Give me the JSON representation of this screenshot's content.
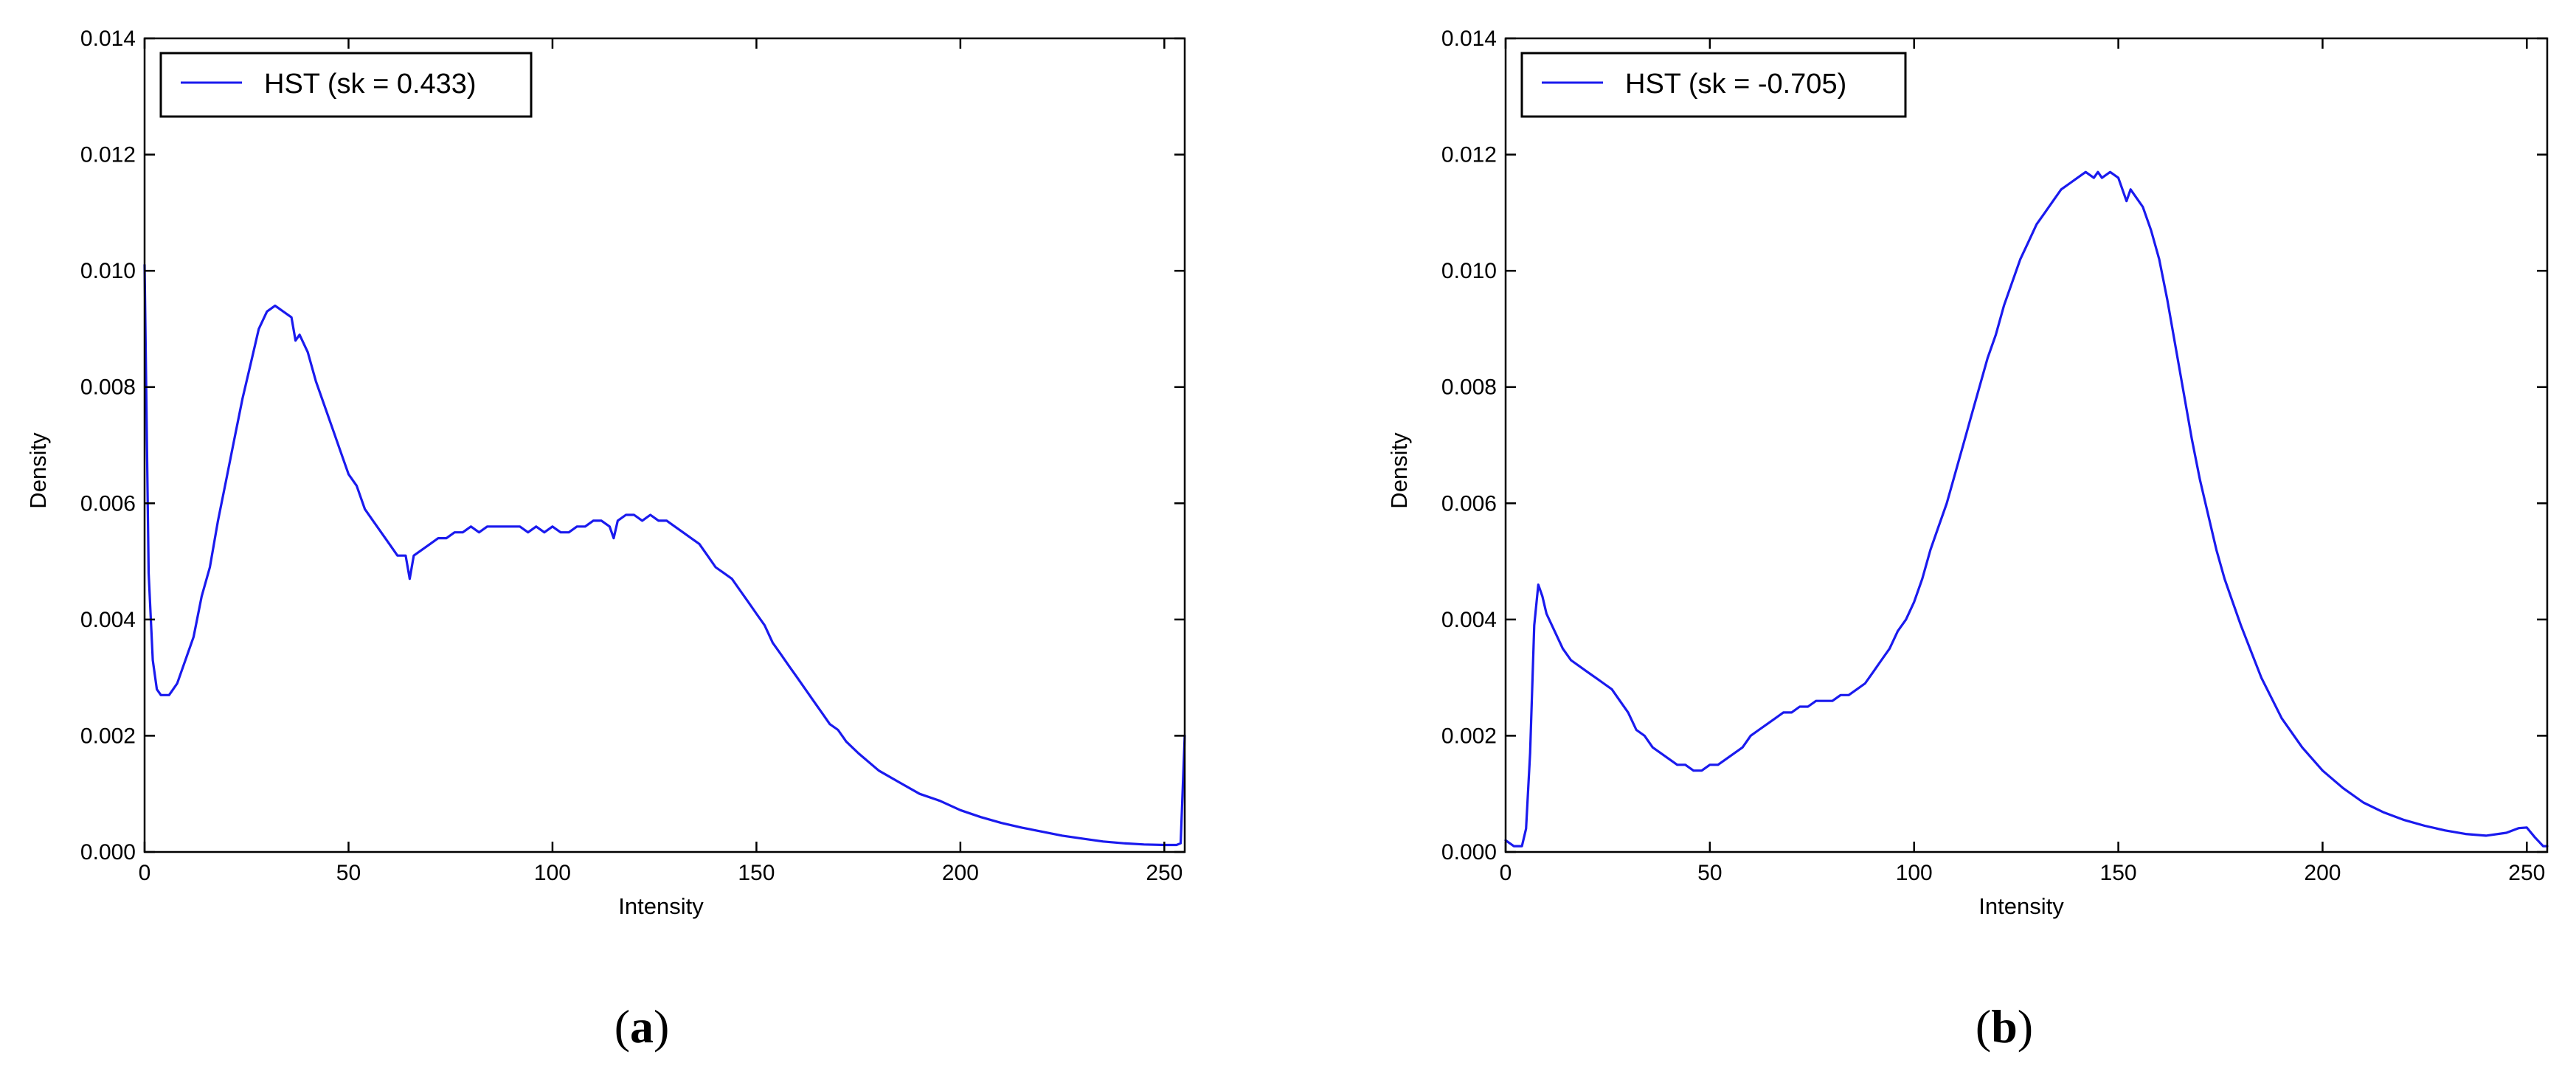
{
  "figure": {
    "captions": [
      {
        "open": "(",
        "letter": "a",
        "close": ")"
      },
      {
        "open": "(",
        "letter": "b",
        "close": ")"
      }
    ]
  },
  "chart_data": [
    {
      "type": "line",
      "xlabel": "Intensity",
      "ylabel": "Density",
      "xlim": [
        0,
        255
      ],
      "ylim": [
        0,
        0.014
      ],
      "xticks": [
        0,
        50,
        100,
        150,
        200,
        250
      ],
      "xtick_labels": [
        "0",
        "50",
        "100",
        "150",
        "200",
        "250"
      ],
      "yticks": [
        0,
        0.002,
        0.004,
        0.006,
        0.008,
        0.01,
        0.012,
        0.014
      ],
      "ytick_labels": [
        "0.000",
        "0.002",
        "0.004",
        "0.006",
        "0.008",
        "0.010",
        "0.012",
        "0.014"
      ],
      "grid": false,
      "legend_position": "top-left",
      "series": [
        {
          "name": "HST (sk = 0.433)",
          "color": "#1a1aee",
          "x": [
            0,
            1,
            2,
            3,
            4,
            5,
            6,
            7,
            8,
            10,
            12,
            14,
            16,
            18,
            20,
            22,
            24,
            26,
            27,
            28,
            30,
            32,
            34,
            36,
            37,
            38,
            40,
            42,
            44,
            46,
            47,
            48,
            50,
            52,
            54,
            56,
            58,
            60,
            62,
            64,
            65,
            66,
            68,
            70,
            72,
            74,
            76,
            78,
            80,
            82,
            84,
            86,
            88,
            90,
            92,
            94,
            96,
            98,
            100,
            102,
            104,
            106,
            108,
            110,
            112,
            114,
            115,
            116,
            118,
            120,
            122,
            124,
            126,
            128,
            130,
            132,
            134,
            136,
            138,
            140,
            142,
            144,
            146,
            148,
            150,
            152,
            154,
            156,
            158,
            160,
            162,
            164,
            166,
            168,
            170,
            172,
            175,
            180,
            185,
            190,
            195,
            200,
            205,
            210,
            215,
            220,
            225,
            230,
            235,
            240,
            245,
            250,
            253,
            254,
            255
          ],
          "values": [
            0.0101,
            0.0048,
            0.0033,
            0.0028,
            0.0027,
            0.0027,
            0.0027,
            0.0028,
            0.0029,
            0.0033,
            0.0037,
            0.0044,
            0.0049,
            0.0057,
            0.0064,
            0.0071,
            0.0078,
            0.0084,
            0.0087,
            0.009,
            0.0093,
            0.0094,
            0.0093,
            0.0092,
            0.0088,
            0.0089,
            0.0086,
            0.0081,
            0.0077,
            0.0073,
            0.0071,
            0.0069,
            0.0065,
            0.0063,
            0.0059,
            0.0057,
            0.0055,
            0.0053,
            0.0051,
            0.0051,
            0.0047,
            0.0051,
            0.0052,
            0.0053,
            0.0054,
            0.0054,
            0.0055,
            0.0055,
            0.0056,
            0.0055,
            0.0056,
            0.0056,
            0.0056,
            0.0056,
            0.0056,
            0.0055,
            0.0056,
            0.0055,
            0.0056,
            0.0055,
            0.0055,
            0.0056,
            0.0056,
            0.0057,
            0.0057,
            0.0056,
            0.0054,
            0.0057,
            0.0058,
            0.0058,
            0.0057,
            0.0058,
            0.0057,
            0.0057,
            0.0056,
            0.0055,
            0.0054,
            0.0053,
            0.0051,
            0.0049,
            0.0048,
            0.0047,
            0.0045,
            0.0043,
            0.0041,
            0.0039,
            0.0036,
            0.0034,
            0.0032,
            0.003,
            0.0028,
            0.0026,
            0.0024,
            0.0022,
            0.0021,
            0.0019,
            0.0017,
            0.0014,
            0.0012,
            0.001,
            0.00088,
            0.00072,
            0.0006,
            0.0005,
            0.00042,
            0.00035,
            0.00028,
            0.00023,
            0.00018,
            0.00015,
            0.00013,
            0.00012,
            0.00012,
            0.00015,
            0.002
          ]
        }
      ]
    },
    {
      "type": "line",
      "xlabel": "Intensity",
      "ylabel": "Density",
      "xlim": [
        0,
        255
      ],
      "ylim": [
        0,
        0.014
      ],
      "xticks": [
        0,
        50,
        100,
        150,
        200,
        250
      ],
      "xtick_labels": [
        "0",
        "50",
        "100",
        "150",
        "200",
        "250"
      ],
      "yticks": [
        0,
        0.002,
        0.004,
        0.006,
        0.008,
        0.01,
        0.012,
        0.014
      ],
      "ytick_labels": [
        "0.000",
        "0.002",
        "0.004",
        "0.006",
        "0.008",
        "0.010",
        "0.012",
        "0.014"
      ],
      "grid": false,
      "legend_position": "top-left",
      "series": [
        {
          "name": "HST (sk = -0.705)",
          "color": "#1a1aee",
          "x": [
            0,
            2,
            4,
            5,
            6,
            7,
            8,
            9,
            10,
            12,
            14,
            16,
            18,
            20,
            22,
            24,
            26,
            28,
            30,
            32,
            34,
            36,
            38,
            40,
            42,
            44,
            46,
            48,
            50,
            52,
            54,
            56,
            58,
            60,
            62,
            64,
            66,
            68,
            70,
            72,
            74,
            76,
            78,
            80,
            82,
            84,
            86,
            88,
            90,
            92,
            94,
            96,
            98,
            100,
            102,
            104,
            106,
            108,
            110,
            112,
            114,
            116,
            118,
            120,
            122,
            124,
            126,
            128,
            130,
            132,
            134,
            136,
            138,
            140,
            142,
            144,
            145,
            146,
            148,
            150,
            152,
            153,
            154,
            156,
            158,
            160,
            162,
            164,
            166,
            168,
            170,
            172,
            174,
            176,
            178,
            180,
            185,
            190,
            195,
            200,
            205,
            210,
            215,
            220,
            225,
            230,
            235,
            240,
            245,
            248,
            250,
            252,
            254,
            255
          ],
          "values": [
            0.0002,
            0.0001,
            0.0001,
            0.0004,
            0.0017,
            0.0039,
            0.0046,
            0.0044,
            0.0041,
            0.0038,
            0.0035,
            0.0033,
            0.0032,
            0.0031,
            0.003,
            0.0029,
            0.0028,
            0.0026,
            0.0024,
            0.0021,
            0.002,
            0.0018,
            0.0017,
            0.0016,
            0.0015,
            0.0015,
            0.0014,
            0.0014,
            0.0015,
            0.0015,
            0.0016,
            0.0017,
            0.0018,
            0.002,
            0.0021,
            0.0022,
            0.0023,
            0.0024,
            0.0024,
            0.0025,
            0.0025,
            0.0026,
            0.0026,
            0.0026,
            0.0027,
            0.0027,
            0.0028,
            0.0029,
            0.0031,
            0.0033,
            0.0035,
            0.0038,
            0.004,
            0.0043,
            0.0047,
            0.0052,
            0.0056,
            0.006,
            0.0065,
            0.007,
            0.0075,
            0.008,
            0.0085,
            0.0089,
            0.0094,
            0.0098,
            0.0102,
            0.0105,
            0.0108,
            0.011,
            0.0112,
            0.0114,
            0.0115,
            0.0116,
            0.0117,
            0.0116,
            0.0117,
            0.0116,
            0.0117,
            0.0116,
            0.0112,
            0.0114,
            0.0113,
            0.0111,
            0.0107,
            0.0102,
            0.0095,
            0.0087,
            0.0079,
            0.0071,
            0.0064,
            0.0058,
            0.0052,
            0.0047,
            0.0043,
            0.0039,
            0.003,
            0.0023,
            0.0018,
            0.0014,
            0.0011,
            0.00085,
            0.00068,
            0.00055,
            0.00045,
            0.00037,
            0.00031,
            0.00028,
            0.00033,
            0.00041,
            0.00042,
            0.00025,
            0.0001,
            0.0001
          ]
        }
      ]
    }
  ]
}
